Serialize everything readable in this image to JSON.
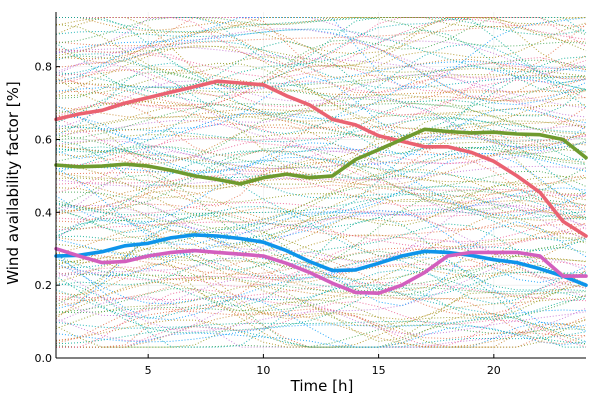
{
  "chart_data": {
    "type": "line",
    "title": "",
    "xlabel": "Time [h]",
    "ylabel": "Wind availability factor [%]",
    "xlim": [
      1,
      24
    ],
    "ylim": [
      0,
      0.95
    ],
    "xticks": [
      5,
      10,
      15,
      20
    ],
    "yticks": [
      0.0,
      0.2,
      0.4,
      0.6,
      0.8
    ],
    "ytick_labels": [
      "0.0",
      "0.2",
      "0.4",
      "0.6",
      "0.8"
    ],
    "grid": true,
    "legend": "none",
    "x": [
      1,
      2,
      3,
      4,
      5,
      6,
      7,
      8,
      9,
      10,
      11,
      12,
      13,
      14,
      15,
      16,
      17,
      18,
      19,
      20,
      21,
      22,
      23,
      24
    ],
    "background_scenarios": {
      "style": "dotted",
      "count": 160,
      "value_range": [
        0.03,
        0.93
      ],
      "colors": [
        "#009AFA",
        "#E36F47",
        "#3EA44E",
        "#C371D2",
        "#AC8E18",
        "#00A9AD",
        "#ED5E93",
        "#C68225",
        "#00A98D",
        "#8E971D"
      ]
    },
    "series": [
      {
        "color": "#EA6271",
        "values": [
          0.655,
          0.67,
          0.68,
          0.7,
          0.715,
          0.73,
          0.745,
          0.76,
          0.755,
          0.75,
          0.72,
          0.695,
          0.655,
          0.64,
          0.61,
          0.595,
          0.58,
          0.58,
          0.565,
          0.54,
          0.5,
          0.455,
          0.375,
          0.335
        ]
      },
      {
        "color": "#6E9A2E",
        "values": [
          0.53,
          0.525,
          0.527,
          0.532,
          0.527,
          0.515,
          0.5,
          0.49,
          0.478,
          0.495,
          0.505,
          0.495,
          0.5,
          0.545,
          0.572,
          0.6,
          0.628,
          0.622,
          0.618,
          0.62,
          0.615,
          0.613,
          0.6,
          0.55
        ]
      },
      {
        "color": "#0E94EA",
        "values": [
          0.28,
          0.282,
          0.292,
          0.308,
          0.315,
          0.33,
          0.338,
          0.335,
          0.328,
          0.318,
          0.295,
          0.265,
          0.24,
          0.242,
          0.26,
          0.28,
          0.293,
          0.29,
          0.282,
          0.27,
          0.262,
          0.245,
          0.225,
          0.2
        ]
      },
      {
        "color": "#D35FBE",
        "values": [
          0.3,
          0.28,
          0.262,
          0.265,
          0.28,
          0.29,
          0.295,
          0.29,
          0.285,
          0.28,
          0.26,
          0.235,
          0.205,
          0.18,
          0.178,
          0.2,
          0.235,
          0.28,
          0.29,
          0.29,
          0.29,
          0.28,
          0.225,
          0.225
        ]
      }
    ]
  }
}
